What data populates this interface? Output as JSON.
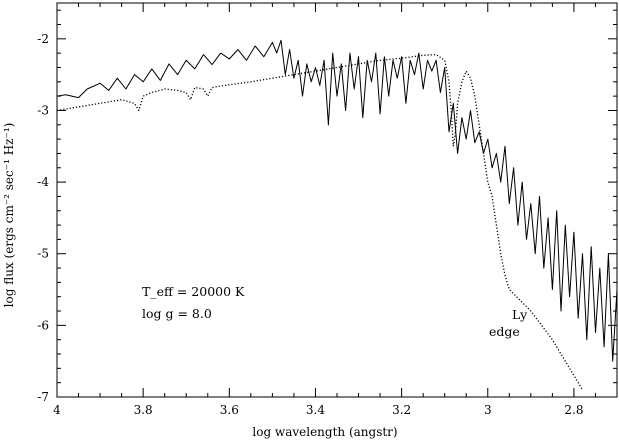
{
  "chart_data": {
    "type": "line",
    "title": "",
    "xlabel": "log wavelength (angstr)",
    "ylabel": "log flux (ergs cm⁻² sec⁻¹ Hz⁻¹)",
    "xlim": [
      4.0,
      2.7
    ],
    "ylim": [
      -7.0,
      -1.5
    ],
    "x_reversed": true,
    "grid": false,
    "legend": "none",
    "x_ticks": [
      4.0,
      3.8,
      3.6,
      3.4,
      3.2,
      3.0,
      2.8
    ],
    "x_tick_labels": [
      "4",
      "3.8",
      "3.6",
      "3.4",
      "3.2",
      "3",
      "2.8"
    ],
    "y_ticks": [
      -7,
      -6,
      -5,
      -4,
      -3,
      -2
    ],
    "y_tick_labels": [
      "-7",
      "-6",
      "-5",
      "-4",
      "-3",
      "-2"
    ],
    "series": [
      {
        "style": "solid",
        "x": [
          4.0,
          3.98,
          3.95,
          3.93,
          3.9,
          3.88,
          3.86,
          3.84,
          3.82,
          3.8,
          3.78,
          3.76,
          3.74,
          3.72,
          3.7,
          3.68,
          3.66,
          3.64,
          3.62,
          3.6,
          3.58,
          3.56,
          3.54,
          3.52,
          3.5,
          3.49,
          3.48,
          3.47,
          3.46,
          3.45,
          3.44,
          3.43,
          3.42,
          3.41,
          3.4,
          3.39,
          3.38,
          3.37,
          3.36,
          3.35,
          3.34,
          3.33,
          3.32,
          3.31,
          3.3,
          3.29,
          3.28,
          3.27,
          3.26,
          3.25,
          3.24,
          3.23,
          3.22,
          3.21,
          3.2,
          3.19,
          3.18,
          3.17,
          3.16,
          3.15,
          3.14,
          3.13,
          3.12,
          3.11,
          3.1,
          3.09,
          3.08,
          3.07,
          3.06,
          3.05,
          3.04,
          3.03,
          3.02,
          3.01,
          3.0,
          2.99,
          2.98,
          2.97,
          2.96,
          2.95,
          2.94,
          2.93,
          2.92,
          2.91,
          2.9,
          2.89,
          2.88,
          2.87,
          2.86,
          2.85,
          2.84,
          2.83,
          2.82,
          2.81,
          2.8,
          2.79,
          2.78,
          2.77,
          2.76,
          2.75,
          2.74,
          2.73,
          2.72,
          2.71,
          2.7
        ],
        "y": [
          -2.8,
          -2.78,
          -2.82,
          -2.7,
          -2.62,
          -2.72,
          -2.55,
          -2.7,
          -2.5,
          -2.6,
          -2.42,
          -2.58,
          -2.35,
          -2.5,
          -2.3,
          -2.42,
          -2.22,
          -2.36,
          -2.2,
          -2.28,
          -2.15,
          -2.3,
          -2.1,
          -2.25,
          -2.05,
          -2.2,
          -2.02,
          -2.5,
          -2.15,
          -2.55,
          -2.3,
          -2.8,
          -2.35,
          -2.6,
          -2.4,
          -2.65,
          -2.3,
          -3.2,
          -2.2,
          -2.8,
          -2.35,
          -3.0,
          -2.2,
          -2.7,
          -2.25,
          -3.1,
          -2.3,
          -2.6,
          -2.2,
          -3.05,
          -2.25,
          -2.8,
          -2.3,
          -2.55,
          -2.25,
          -2.9,
          -2.3,
          -2.5,
          -2.2,
          -2.7,
          -2.3,
          -2.45,
          -2.3,
          -2.75,
          -2.4,
          -3.3,
          -2.9,
          -3.6,
          -3.1,
          -3.4,
          -3.0,
          -3.45,
          -3.3,
          -3.6,
          -3.4,
          -3.8,
          -3.6,
          -4.0,
          -3.5,
          -4.3,
          -3.8,
          -4.6,
          -4.0,
          -4.8,
          -4.3,
          -5.0,
          -4.2,
          -5.2,
          -4.5,
          -5.5,
          -4.4,
          -5.8,
          -4.6,
          -5.6,
          -4.7,
          -5.9,
          -5.0,
          -6.2,
          -4.9,
          -6.1,
          -5.2,
          -6.3,
          -5.0,
          -6.5,
          -5.5
        ]
      },
      {
        "style": "dotted",
        "x": [
          4.0,
          3.95,
          3.9,
          3.85,
          3.82,
          3.81,
          3.8,
          3.78,
          3.75,
          3.72,
          3.7,
          3.69,
          3.68,
          3.66,
          3.65,
          3.64,
          3.62,
          3.6,
          3.55,
          3.5,
          3.45,
          3.4,
          3.35,
          3.3,
          3.25,
          3.2,
          3.15,
          3.12,
          3.1,
          3.09,
          3.085,
          3.08,
          3.075,
          3.07,
          3.06,
          3.05,
          3.04,
          3.03,
          3.02,
          3.01,
          3.0,
          2.99,
          2.98,
          2.97,
          2.96,
          2.95,
          2.9,
          2.85,
          2.8,
          2.78
        ],
        "y": [
          -3.0,
          -2.95,
          -2.9,
          -2.85,
          -2.9,
          -3.0,
          -2.8,
          -2.75,
          -2.7,
          -2.72,
          -2.75,
          -2.85,
          -2.68,
          -2.7,
          -2.8,
          -2.68,
          -2.66,
          -2.64,
          -2.6,
          -2.55,
          -2.5,
          -2.45,
          -2.4,
          -2.35,
          -2.3,
          -2.27,
          -2.23,
          -2.22,
          -2.3,
          -2.6,
          -3.0,
          -3.5,
          -3.3,
          -2.9,
          -2.6,
          -2.45,
          -2.55,
          -2.8,
          -3.2,
          -3.6,
          -4.0,
          -4.2,
          -4.6,
          -5.0,
          -5.3,
          -5.5,
          -5.8,
          -6.2,
          -6.7,
          -6.9
        ]
      }
    ],
    "annotations": {
      "teff": "T_eff = 20000 K",
      "logg": "log g = 8.0",
      "ly": "Ly",
      "edge": "edge"
    }
  }
}
